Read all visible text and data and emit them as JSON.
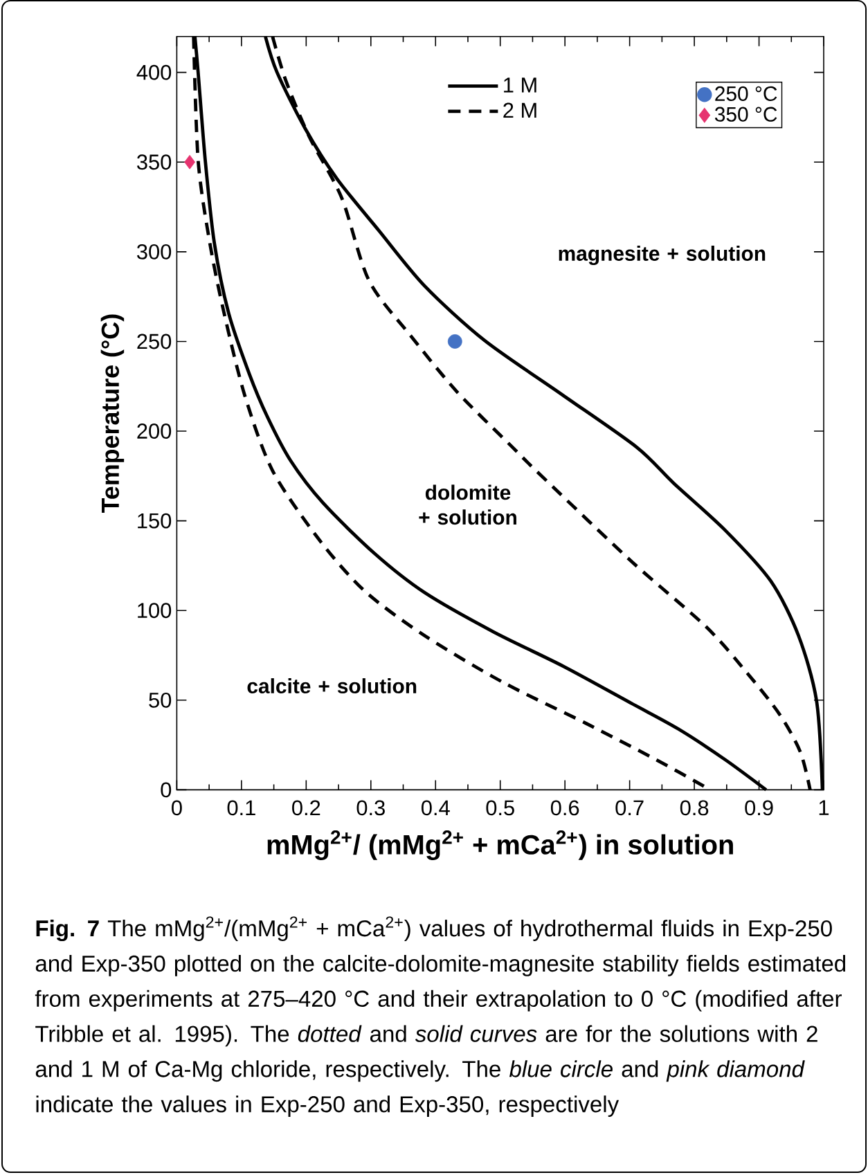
{
  "chart_data": {
    "type": "line",
    "xlabel": "mMg$^{2+}$/ (mMg$^{2+}$ + mCa$^{2+}$) in solution",
    "ylabel": "Temperature (°C)",
    "xlim": [
      0,
      1
    ],
    "ylim": [
      0,
      420
    ],
    "xticks": [
      0,
      0.1,
      0.2,
      0.3,
      0.4,
      0.5,
      0.6,
      0.7,
      0.8,
      0.9,
      1
    ],
    "yticks": [
      0,
      50,
      100,
      150,
      200,
      250,
      300,
      350,
      400
    ],
    "grid": false,
    "legend": "top right",
    "series": [
      {
        "name": "1 M",
        "line_style": "solid",
        "color": "#000000",
        "x": [
          0.028,
          0.033,
          0.044,
          0.058,
          0.08,
          0.112,
          0.14,
          0.176,
          0.226,
          0.305,
          0.383,
          0.49,
          0.597,
          0.704,
          0.775,
          0.847,
          0.911
        ],
        "values": [
          420,
          400,
          351,
          305,
          266,
          232,
          208,
          183.5,
          160,
          132,
          110,
          88,
          69,
          48,
          34,
          17,
          0
        ]
      },
      {
        "line_style": "solid",
        "color": "#000000",
        "x": [
          0.137,
          0.155,
          0.198,
          0.247,
          0.312,
          0.383,
          0.476,
          0.597,
          0.711,
          0.768,
          0.847,
          0.918,
          0.961,
          0.989,
          0.998
        ],
        "values": [
          420,
          400,
          369,
          341,
          312,
          281,
          250.5,
          220,
          191,
          171,
          145,
          116.5,
          86,
          49.5,
          0
        ]
      },
      {
        "name": "2 M",
        "line_style": "dashed",
        "color": "#000000",
        "x": [
          0.026,
          0.033,
          0.051,
          0.073,
          0.105,
          0.148,
          0.219,
          0.29,
          0.383,
          0.504,
          0.633,
          0.74,
          0.825
        ],
        "values": [
          420,
          351,
          305,
          266,
          220,
          178,
          140,
          111,
          86,
          60,
          37,
          17,
          0
        ]
      },
      {
        "line_style": "dashed",
        "color": "#000000",
        "x": [
          0.148,
          0.169,
          0.205,
          0.255,
          0.297,
          0.362,
          0.433,
          0.519,
          0.561,
          0.704,
          0.818,
          0.882,
          0.932,
          0.964,
          0.979
        ],
        "values": [
          420,
          395,
          364,
          330,
          284,
          253,
          222,
          191,
          176,
          127,
          91,
          65,
          42,
          21,
          0
        ]
      },
      {
        "name": "250 °C",
        "type": "scatter",
        "marker": "circle",
        "color": "#4472c4",
        "x": [
          0.43
        ],
        "values": [
          250
        ]
      },
      {
        "name": "350 °C",
        "type": "scatter",
        "marker": "diamond",
        "color": "#e6336f",
        "x": [
          0.02
        ],
        "values": [
          350
        ]
      }
    ],
    "annotations": [
      "magnesite + solution",
      "dolomite + solution",
      "calcite + solution",
      "**Fig. 7** The mMg$^{2+}$/(mMg$^{2+}$ + mCa$^{2+}$) values of hydrothermal fluids in Exp-250 and Exp-350 plotted on the calcite-dolomite-magnesite stability fields estimated from experiments at 275–420 °C and their extrapolation to 0 °C (modified after Tribble et al. 1995). The *dotted* and *solid curves* are for the solutions with 2 and 1 M of Ca-Mg chloride, respectively. The *blue circle* and *pink diamond* indicate the values in Exp-250 and Exp-350, respectively"
    ]
  }
}
